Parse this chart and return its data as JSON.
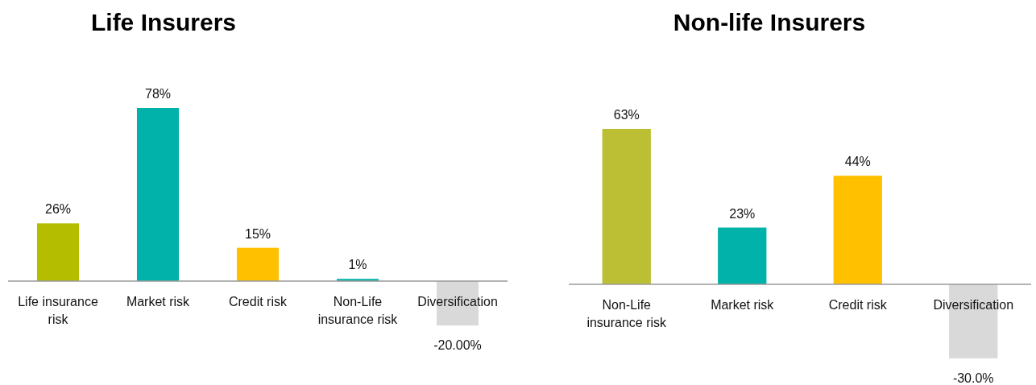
{
  "chart_data": [
    {
      "type": "bar",
      "title": "Life Insurers",
      "categories": [
        "Life insurance risk",
        "Market risk",
        "Credit risk",
        "Non-Life insurance risk",
        "Diversification"
      ],
      "values": [
        26,
        78,
        15,
        1,
        -20
      ],
      "colors": [
        "#b5bd00",
        "#00b2a9",
        "#ffc000",
        "#00b2a9",
        "#d9d9d9"
      ],
      "value_labels": [
        "26%",
        "78%",
        "15%",
        "1%",
        "-20.00%"
      ]
    },
    {
      "type": "bar",
      "title": "Non-life Insurers",
      "categories": [
        "Non-Life insurance risk",
        "Market risk",
        "Credit risk",
        "Diversification"
      ],
      "values": [
        63,
        23,
        44,
        -30
      ],
      "colors": [
        "#bcbf33",
        "#00b2a9",
        "#ffc000",
        "#d9d9d9"
      ],
      "value_labels": [
        "63%",
        "23%",
        "44%",
        "-30.0%"
      ]
    }
  ]
}
